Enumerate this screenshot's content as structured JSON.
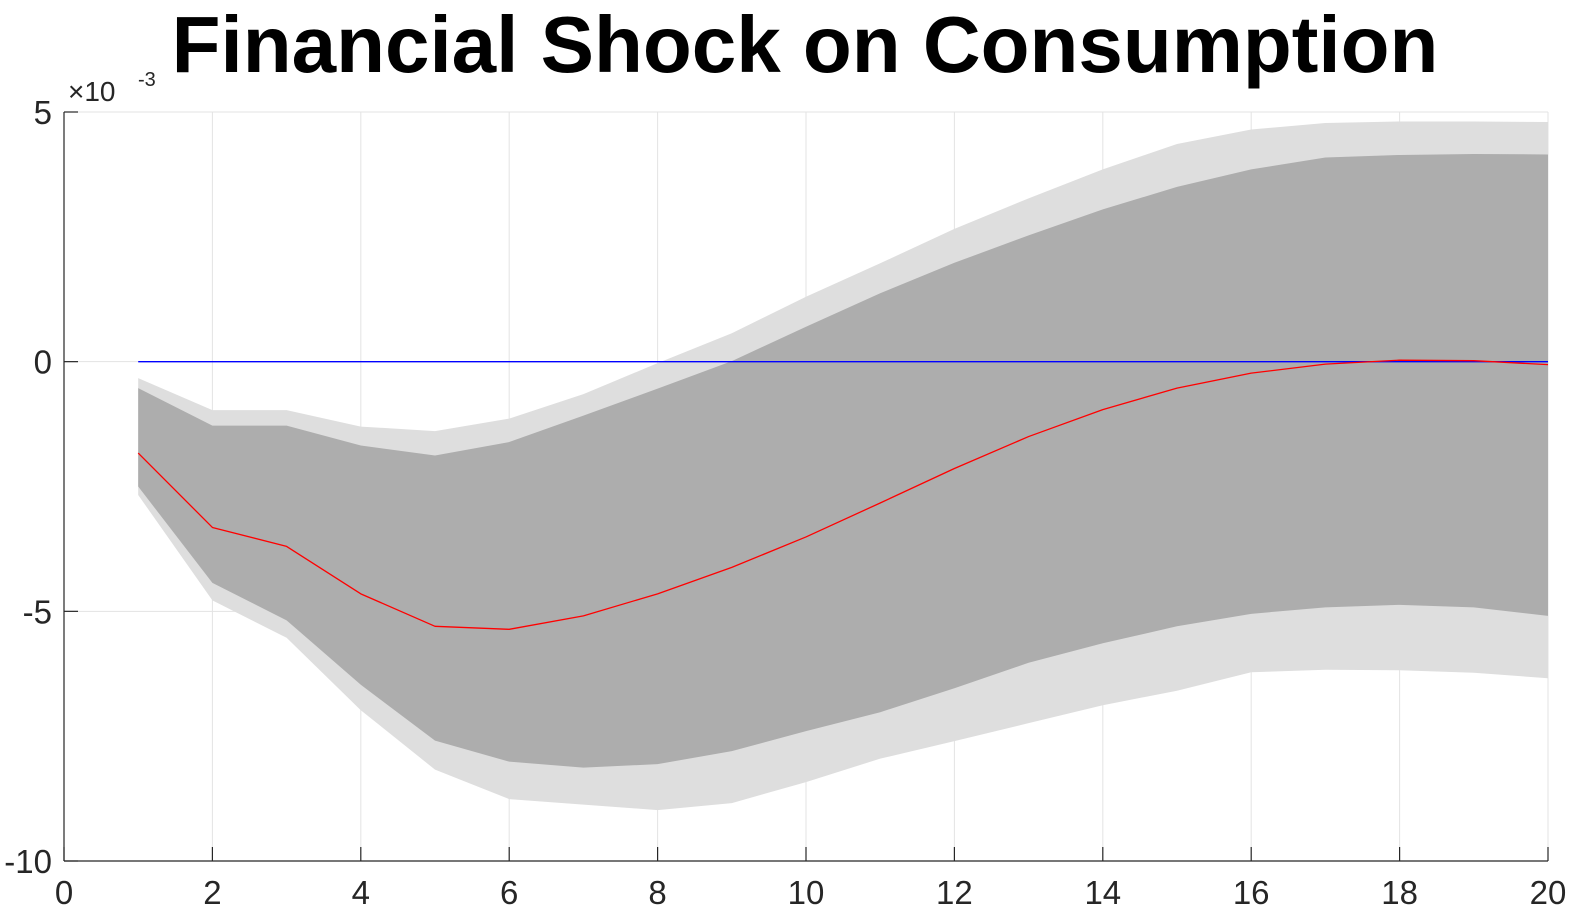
{
  "chart_data": {
    "type": "line",
    "title": "Financial Shock on Consumption",
    "xlabel": "",
    "ylabel": "",
    "xlim": [
      0,
      20
    ],
    "ylim": [
      -0.01,
      0.005
    ],
    "x_ticks": [
      0,
      2,
      4,
      6,
      8,
      10,
      12,
      14,
      16,
      18,
      20
    ],
    "x_tick_labels": [
      "0",
      "2",
      "4",
      "6",
      "8",
      "10",
      "12",
      "14",
      "16",
      "18",
      "20"
    ],
    "y_ticks": [
      -10,
      -5,
      0,
      5
    ],
    "y_tick_labels": [
      "-10",
      "-5",
      "0",
      "5"
    ],
    "y_exponent_label": {
      "base": "×10",
      "power": "-3"
    },
    "grid": true,
    "x": [
      1,
      2,
      3,
      4,
      5,
      6,
      7,
      8,
      9,
      10,
      11,
      12,
      13,
      14,
      15,
      16,
      17,
      18,
      19,
      20
    ],
    "bands": [
      {
        "upper": [
          -0.00033,
          -0.00097,
          -0.00097,
          -0.0013,
          -0.00139,
          -0.00114,
          -0.00065,
          -3e-05,
          0.00057,
          0.0013,
          0.00197,
          0.00266,
          0.00327,
          0.00385,
          0.00436,
          0.00465,
          0.00478,
          0.00481,
          0.00481,
          0.0048
        ],
        "lower": [
          -0.00267,
          -0.00478,
          -0.00553,
          -0.00698,
          -0.00817,
          -0.00876,
          -0.00887,
          -0.00898,
          -0.00884,
          -0.00842,
          -0.00795,
          -0.0076,
          -0.00724,
          -0.00688,
          -0.00659,
          -0.00622,
          -0.00617,
          -0.00618,
          -0.00623,
          -0.00634
        ],
        "color": "#dedede"
      },
      {
        "upper": [
          -0.00053,
          -0.00128,
          -0.00128,
          -0.00168,
          -0.00188,
          -0.00161,
          -0.00108,
          -0.00054,
          1e-05,
          0.0007,
          0.00137,
          0.00198,
          0.00253,
          0.00305,
          0.0035,
          0.00385,
          0.00409,
          0.00414,
          0.00416,
          0.00415
        ],
        "lower": [
          -0.0025,
          -0.00443,
          -0.00518,
          -0.00647,
          -0.00759,
          -0.00801,
          -0.00813,
          -0.00806,
          -0.0078,
          -0.0074,
          -0.00702,
          -0.00654,
          -0.00603,
          -0.00564,
          -0.0053,
          -0.00505,
          -0.00492,
          -0.00487,
          -0.00492,
          -0.00509
        ],
        "color": "#adadad"
      }
    ],
    "series": [
      {
        "values": [
          -0.00183,
          -0.00332,
          -0.0037,
          -0.00465,
          -0.0053,
          -0.00536,
          -0.00509,
          -0.00465,
          -0.00412,
          -0.00351,
          -0.00283,
          -0.00214,
          -0.0015,
          -0.00096,
          -0.00053,
          -0.00023,
          -5e-05,
          3e-05,
          2e-05,
          -6e-05
        ],
        "color": "#ff0000"
      },
      {
        "values": [
          0,
          0,
          0,
          0,
          0,
          0,
          0,
          0,
          0,
          0,
          0,
          0,
          0,
          0,
          0,
          0,
          0,
          0,
          0,
          0
        ],
        "color": "#0000ff"
      }
    ]
  }
}
